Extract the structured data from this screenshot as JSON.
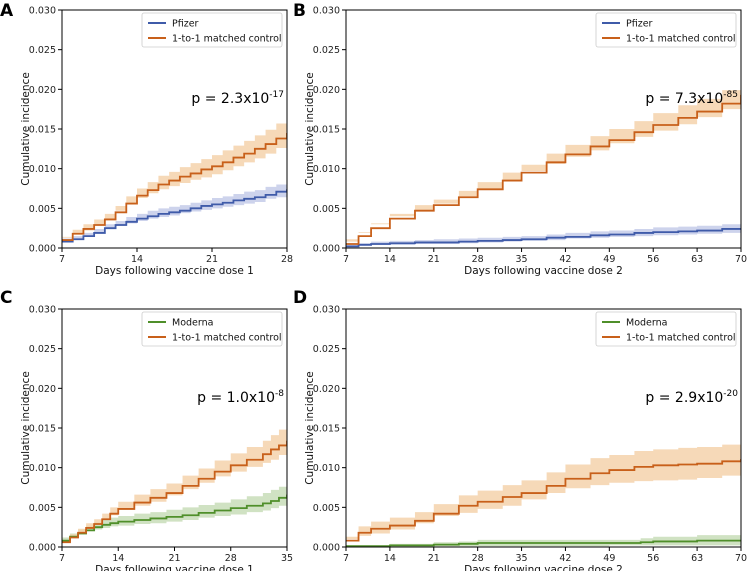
{
  "colors": {
    "pfizer": "#3f5ba9",
    "pfizer_band": "#c4cbe9",
    "moderna": "#4f8f2a",
    "moderna_band": "#c8ddb8",
    "control": "#c8601a",
    "control_band": "#f4d2ac"
  },
  "chart_data": [
    {
      "panel": "A",
      "type": "line",
      "xlabel": "Days following vaccine dose 1",
      "ylabel": "Cumulative incidence",
      "xlim": [
        7,
        28
      ],
      "ylim": [
        0,
        0.03
      ],
      "xticks": [
        7,
        14,
        21,
        28
      ],
      "yticks": [
        0.0,
        0.005,
        0.01,
        0.015,
        0.02,
        0.025,
        0.03
      ],
      "ytick_labels": [
        "0.000",
        "0.005",
        "0.010",
        "0.015",
        "0.020",
        "0.025",
        "0.030"
      ],
      "legend_position": "top-right",
      "p_value": {
        "mantissa": "p = 2.3x10",
        "exponent": "-17"
      },
      "series": [
        {
          "name": "Pfizer",
          "color_key": "pfizer",
          "x": [
            7,
            8,
            9,
            10,
            11,
            12,
            13,
            14,
            15,
            16,
            17,
            18,
            19,
            20,
            21,
            22,
            23,
            24,
            25,
            26,
            27,
            28
          ],
          "values": [
            0.0008,
            0.0011,
            0.0015,
            0.0019,
            0.0025,
            0.0029,
            0.0033,
            0.0037,
            0.004,
            0.0043,
            0.0045,
            0.0047,
            0.005,
            0.0053,
            0.0055,
            0.0057,
            0.006,
            0.0062,
            0.0064,
            0.0067,
            0.0071,
            0.0074
          ],
          "lower": [
            0.0005,
            0.0008,
            0.0011,
            0.0015,
            0.002,
            0.0024,
            0.0028,
            0.0031,
            0.0034,
            0.0037,
            0.0039,
            0.0041,
            0.0044,
            0.0046,
            0.0048,
            0.005,
            0.0052,
            0.0054,
            0.0056,
            0.0058,
            0.0062,
            0.0064
          ],
          "upper": [
            0.0012,
            0.0015,
            0.0019,
            0.0024,
            0.003,
            0.0034,
            0.0039,
            0.0043,
            0.0047,
            0.005,
            0.0052,
            0.0054,
            0.0057,
            0.006,
            0.0063,
            0.0065,
            0.0068,
            0.0071,
            0.0073,
            0.0077,
            0.008,
            0.0084
          ]
        },
        {
          "name": "1-to-1 matched control",
          "color_key": "control",
          "x": [
            7,
            8,
            9,
            10,
            11,
            12,
            13,
            14,
            15,
            16,
            17,
            18,
            19,
            20,
            21,
            22,
            23,
            24,
            25,
            26,
            27,
            28
          ],
          "values": [
            0.001,
            0.0018,
            0.0024,
            0.0029,
            0.0036,
            0.0045,
            0.0056,
            0.0066,
            0.0073,
            0.008,
            0.0085,
            0.009,
            0.0094,
            0.0099,
            0.0103,
            0.0108,
            0.0114,
            0.0119,
            0.0125,
            0.0131,
            0.0138,
            0.0145
          ],
          "lower": [
            0.0006,
            0.0013,
            0.0018,
            0.0022,
            0.0029,
            0.0037,
            0.0047,
            0.0057,
            0.0063,
            0.0069,
            0.0074,
            0.0078,
            0.0082,
            0.0086,
            0.0089,
            0.0093,
            0.0098,
            0.0103,
            0.0108,
            0.0113,
            0.0119,
            0.0126
          ],
          "upper": [
            0.0014,
            0.0023,
            0.003,
            0.0036,
            0.0043,
            0.0053,
            0.0065,
            0.0075,
            0.0083,
            0.0091,
            0.0096,
            0.0102,
            0.0107,
            0.0112,
            0.0117,
            0.0123,
            0.0129,
            0.0135,
            0.0142,
            0.0149,
            0.0157,
            0.0165
          ]
        }
      ]
    },
    {
      "panel": "B",
      "type": "line",
      "xlabel": "Days following vaccine dose 2",
      "ylabel": "Cumulative incidence",
      "xlim": [
        7,
        70
      ],
      "ylim": [
        0,
        0.03
      ],
      "xticks": [
        7,
        14,
        21,
        28,
        35,
        42,
        49,
        56,
        63,
        70
      ],
      "yticks": [
        0.0,
        0.005,
        0.01,
        0.015,
        0.02,
        0.025,
        0.03
      ],
      "ytick_labels": [
        "0.000",
        "0.005",
        "0.010",
        "0.015",
        "0.020",
        "0.025",
        "0.030"
      ],
      "legend_position": "top-right",
      "p_value": {
        "mantissa": "p = 7.3x10",
        "exponent": "-85"
      },
      "series": [
        {
          "name": "Pfizer",
          "color_key": "pfizer",
          "x": [
            7,
            9,
            11,
            14,
            18,
            21,
            25,
            28,
            32,
            35,
            39,
            42,
            46,
            49,
            53,
            56,
            60,
            63,
            67,
            70
          ],
          "values": [
            0.0002,
            0.0004,
            0.0005,
            0.0006,
            0.0007,
            0.0007,
            0.0008,
            0.0009,
            0.001,
            0.0011,
            0.0013,
            0.0014,
            0.0016,
            0.0017,
            0.0019,
            0.002,
            0.0021,
            0.0022,
            0.0024,
            0.0025
          ],
          "lower": [
            0.0001,
            0.0002,
            0.0003,
            0.0004,
            0.0004,
            0.0005,
            0.0005,
            0.0006,
            0.0007,
            0.0008,
            0.0009,
            0.001,
            0.0012,
            0.0013,
            0.0014,
            0.0015,
            0.0016,
            0.0017,
            0.0018,
            0.0019
          ],
          "upper": [
            0.0004,
            0.0006,
            0.0008,
            0.0009,
            0.001,
            0.0011,
            0.0012,
            0.0013,
            0.0014,
            0.0015,
            0.0017,
            0.0019,
            0.0021,
            0.0022,
            0.0024,
            0.0026,
            0.0027,
            0.0028,
            0.003,
            0.0032
          ]
        },
        {
          "name": "1-to-1 matched control",
          "color_key": "control",
          "x": [
            7,
            9,
            11,
            14,
            18,
            21,
            25,
            28,
            32,
            35,
            39,
            42,
            46,
            49,
            53,
            56,
            60,
            63,
            67,
            70
          ],
          "values": [
            0.0005,
            0.0015,
            0.0025,
            0.0037,
            0.0047,
            0.0054,
            0.0064,
            0.0074,
            0.0085,
            0.0095,
            0.0108,
            0.0118,
            0.0128,
            0.0136,
            0.0146,
            0.0155,
            0.0164,
            0.0172,
            0.0182,
            0.0193
          ],
          "lower": [
            0.0003,
            0.0011,
            0.002,
            0.0031,
            0.004,
            0.0047,
            0.0056,
            0.0065,
            0.0075,
            0.0085,
            0.0097,
            0.0106,
            0.0115,
            0.0123,
            0.0132,
            0.014,
            0.0148,
            0.0156,
            0.0165,
            0.0175
          ],
          "upper": [
            0.0008,
            0.0019,
            0.003,
            0.0043,
            0.0054,
            0.0061,
            0.0072,
            0.0083,
            0.0095,
            0.0105,
            0.0119,
            0.013,
            0.0141,
            0.015,
            0.016,
            0.017,
            0.018,
            0.0188,
            0.0199,
            0.0211
          ]
        }
      ]
    },
    {
      "panel": "C",
      "type": "line",
      "xlabel": "Days following vaccine dose 1",
      "ylabel": "Cumulative incidence",
      "xlim": [
        7,
        35
      ],
      "ylim": [
        0,
        0.03
      ],
      "xticks": [
        7,
        14,
        21,
        28,
        35
      ],
      "yticks": [
        0.0,
        0.005,
        0.01,
        0.015,
        0.02,
        0.025,
        0.03
      ],
      "ytick_labels": [
        "0.000",
        "0.005",
        "0.010",
        "0.015",
        "0.020",
        "0.025",
        "0.030"
      ],
      "legend_position": "top-right",
      "p_value": {
        "mantissa": "p = 1.0x10",
        "exponent": "-8"
      },
      "series": [
        {
          "name": "Moderna",
          "color_key": "moderna",
          "x": [
            7,
            8,
            9,
            10,
            11,
            12,
            13,
            14,
            16,
            18,
            20,
            22,
            24,
            26,
            28,
            30,
            32,
            33,
            34,
            35
          ],
          "values": [
            0.0008,
            0.0013,
            0.0017,
            0.0021,
            0.0025,
            0.0028,
            0.003,
            0.0032,
            0.0034,
            0.0036,
            0.0038,
            0.004,
            0.0043,
            0.0046,
            0.0049,
            0.0052,
            0.0055,
            0.0058,
            0.0062,
            0.0066
          ],
          "lower": [
            0.0005,
            0.0009,
            0.0013,
            0.0016,
            0.002,
            0.0022,
            0.0024,
            0.0026,
            0.0027,
            0.0029,
            0.003,
            0.0032,
            0.0034,
            0.0037,
            0.0039,
            0.0041,
            0.0044,
            0.0046,
            0.0049,
            0.0052
          ],
          "upper": [
            0.0012,
            0.0017,
            0.0022,
            0.0027,
            0.0031,
            0.0034,
            0.0037,
            0.0039,
            0.0042,
            0.0044,
            0.0047,
            0.005,
            0.0053,
            0.0056,
            0.006,
            0.0064,
            0.0068,
            0.0072,
            0.0076,
            0.008
          ]
        },
        {
          "name": "1-to-1 matched control",
          "color_key": "control",
          "x": [
            7,
            8,
            9,
            10,
            11,
            12,
            13,
            14,
            16,
            18,
            20,
            22,
            24,
            26,
            28,
            30,
            32,
            33,
            34,
            35
          ],
          "values": [
            0.0006,
            0.0012,
            0.0018,
            0.0024,
            0.0029,
            0.0035,
            0.0042,
            0.0048,
            0.0056,
            0.0062,
            0.0068,
            0.0077,
            0.0086,
            0.0095,
            0.0103,
            0.011,
            0.0117,
            0.0123,
            0.0128,
            0.0134
          ],
          "lower": [
            0.0003,
            0.0008,
            0.0013,
            0.0018,
            0.0023,
            0.0028,
            0.0034,
            0.004,
            0.0047,
            0.0052,
            0.0057,
            0.0065,
            0.0073,
            0.0081,
            0.0089,
            0.0095,
            0.0101,
            0.0106,
            0.011,
            0.0116
          ],
          "upper": [
            0.0009,
            0.0016,
            0.0023,
            0.003,
            0.0035,
            0.0042,
            0.005,
            0.0057,
            0.0066,
            0.0073,
            0.008,
            0.009,
            0.0099,
            0.0109,
            0.0118,
            0.0126,
            0.0134,
            0.0141,
            0.0148,
            0.0155
          ]
        }
      ]
    },
    {
      "panel": "D",
      "type": "line",
      "xlabel": "Days following vaccine dose 2",
      "ylabel": "Cumulative incidence",
      "xlim": [
        7,
        70
      ],
      "ylim": [
        0,
        0.03
      ],
      "xticks": [
        7,
        14,
        21,
        28,
        35,
        42,
        49,
        56,
        63,
        70
      ],
      "yticks": [
        0.0,
        0.005,
        0.01,
        0.015,
        0.02,
        0.025,
        0.03
      ],
      "ytick_labels": [
        "0.000",
        "0.005",
        "0.010",
        "0.015",
        "0.020",
        "0.025",
        "0.030"
      ],
      "legend_position": "top-right",
      "p_value": {
        "mantissa": "p = 2.9x10",
        "exponent": "-20"
      },
      "series": [
        {
          "name": "Moderna",
          "color_key": "moderna",
          "x": [
            7,
            14,
            21,
            25,
            28,
            35,
            42,
            49,
            54,
            56,
            63,
            70
          ],
          "values": [
            0.0001,
            0.0002,
            0.0003,
            0.0004,
            0.0005,
            0.0005,
            0.0005,
            0.0005,
            0.0006,
            0.0007,
            0.0008,
            0.0008
          ],
          "lower": [
            0.0,
            0.0,
            0.0001,
            0.0001,
            0.0001,
            0.0001,
            0.0001,
            0.0001,
            0.0002,
            0.0002,
            0.0002,
            0.0002
          ],
          "upper": [
            0.0002,
            0.0004,
            0.0006,
            0.0007,
            0.0009,
            0.0009,
            0.0009,
            0.0009,
            0.0011,
            0.0013,
            0.0015,
            0.0015
          ]
        },
        {
          "name": "1-to-1 matched control",
          "color_key": "control",
          "x": [
            7,
            9,
            11,
            14,
            18,
            21,
            25,
            28,
            32,
            35,
            39,
            42,
            46,
            49,
            53,
            56,
            60,
            63,
            67,
            70
          ],
          "values": [
            0.0008,
            0.0018,
            0.0023,
            0.0027,
            0.0033,
            0.0042,
            0.0052,
            0.0057,
            0.0063,
            0.0068,
            0.0077,
            0.0086,
            0.0093,
            0.0097,
            0.0101,
            0.0103,
            0.0104,
            0.0105,
            0.0108,
            0.0111
          ],
          "lower": [
            0.0003,
            0.001,
            0.0014,
            0.0017,
            0.0022,
            0.003,
            0.0039,
            0.0043,
            0.0048,
            0.0052,
            0.006,
            0.0068,
            0.0074,
            0.0078,
            0.0081,
            0.0083,
            0.0084,
            0.0085,
            0.0087,
            0.009
          ],
          "upper": [
            0.0013,
            0.0026,
            0.0032,
            0.0037,
            0.0044,
            0.0054,
            0.0065,
            0.0071,
            0.0078,
            0.0084,
            0.0094,
            0.0104,
            0.0112,
            0.0116,
            0.0121,
            0.0123,
            0.0125,
            0.0126,
            0.0129,
            0.0133
          ]
        }
      ]
    }
  ]
}
